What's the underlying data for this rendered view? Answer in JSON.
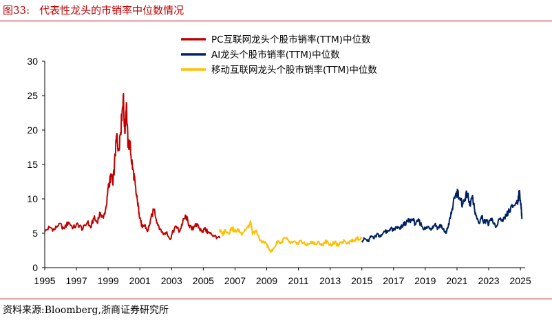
{
  "figure": {
    "label": "图33:",
    "title": "代表性龙头的市销率中位数情况",
    "source": "资料来源:Bloomberg,浙商证券研究所"
  },
  "colors": {
    "accent": "#c00000",
    "pc": "#c00000",
    "ai": "#002060",
    "mobile": "#ffc000",
    "axis": "#000000"
  },
  "chart_data": {
    "type": "line",
    "title": "代表性龙头的市销率中位数情况",
    "xlabel": "",
    "ylabel": "",
    "xlim": [
      1995,
      2025.3
    ],
    "ylim": [
      0,
      30
    ],
    "yticks": [
      0,
      5,
      10,
      15,
      20,
      25,
      30
    ],
    "xticks": [
      1995,
      1997,
      1999,
      2001,
      2003,
      2005,
      2007,
      2009,
      2011,
      2013,
      2015,
      2017,
      2019,
      2021,
      2023,
      2025
    ],
    "legend_position": "top",
    "series": [
      {
        "name": "PC互联网龙头个股市销率(TTM)中位数",
        "color": "#c00000",
        "x": [
          1995.0,
          1995.3,
          1995.6,
          1995.9,
          1996.2,
          1996.5,
          1996.8,
          1997.1,
          1997.4,
          1997.7,
          1997.9,
          1998.1,
          1998.3,
          1998.5,
          1998.7,
          1998.9,
          1999.0,
          1999.1,
          1999.2,
          1999.3,
          1999.45,
          1999.55,
          1999.65,
          1999.75,
          1999.85,
          1999.95,
          2000.05,
          2000.15,
          2000.25,
          2000.35,
          2000.45,
          2000.55,
          2000.65,
          2000.75,
          2000.85,
          2000.95,
          2001.05,
          2001.15,
          2001.3,
          2001.5,
          2001.7,
          2001.9,
          2002.1,
          2002.3,
          2002.5,
          2002.7,
          2002.9,
          2003.1,
          2003.3,
          2003.5,
          2003.7,
          2003.9,
          2004.1,
          2004.3,
          2004.5,
          2004.7,
          2004.9,
          2005.1,
          2005.3,
          2005.5,
          2005.7,
          2005.9,
          2006.05
        ],
        "values": [
          5.2,
          5.9,
          5.5,
          6.4,
          5.7,
          6.6,
          5.8,
          6.3,
          5.6,
          6.6,
          5.8,
          7.2,
          6.6,
          8.0,
          7.2,
          9.1,
          11.5,
          12.6,
          13.3,
          12.0,
          16.5,
          19.5,
          17.0,
          19.3,
          21.5,
          25.0,
          19.5,
          24.0,
          17.5,
          18.5,
          16.0,
          14.5,
          13.0,
          11.0,
          9.5,
          8.0,
          6.8,
          5.8,
          6.2,
          5.3,
          7.2,
          8.5,
          6.5,
          5.6,
          4.8,
          5.2,
          4.1,
          5.3,
          6.0,
          5.2,
          6.6,
          7.5,
          6.2,
          5.5,
          6.4,
          5.8,
          5.3,
          5.6,
          5.1,
          4.9,
          4.6,
          4.4,
          4.3
        ]
      },
      {
        "name": "AI龙头个股市销率(TTM)中位数",
        "color": "#002060",
        "x": [
          2015.0,
          2015.2,
          2015.4,
          2015.6,
          2015.8,
          2016.0,
          2016.2,
          2016.4,
          2016.6,
          2016.8,
          2017.0,
          2017.2,
          2017.4,
          2017.6,
          2017.8,
          2018.0,
          2018.2,
          2018.4,
          2018.6,
          2018.8,
          2019.0,
          2019.2,
          2019.4,
          2019.6,
          2019.8,
          2020.0,
          2020.2,
          2020.3,
          2020.45,
          2020.6,
          2020.75,
          2020.9,
          2021.05,
          2021.2,
          2021.35,
          2021.5,
          2021.65,
          2021.8,
          2021.95,
          2022.1,
          2022.25,
          2022.4,
          2022.55,
          2022.7,
          2022.85,
          2023.0,
          2023.15,
          2023.3,
          2023.5,
          2023.7,
          2023.9,
          2024.1,
          2024.3,
          2024.5,
          2024.7,
          2024.85,
          2024.95,
          2025.05,
          2025.1
        ],
        "values": [
          3.9,
          4.2,
          3.8,
          4.6,
          4.4,
          4.9,
          4.5,
          5.3,
          5.1,
          5.7,
          5.4,
          5.9,
          5.6,
          6.2,
          6.6,
          6.8,
          7.0,
          6.3,
          6.8,
          6.0,
          5.6,
          6.0,
          5.7,
          6.3,
          5.8,
          6.2,
          5.2,
          5.0,
          6.0,
          7.5,
          9.0,
          10.5,
          11.0,
          9.8,
          9.2,
          10.0,
          10.8,
          9.0,
          10.2,
          8.6,
          7.2,
          6.5,
          7.5,
          6.6,
          7.0,
          6.2,
          7.1,
          6.5,
          6.0,
          7.0,
          6.7,
          7.5,
          8.3,
          8.8,
          9.4,
          9.8,
          11.2,
          8.5,
          7.3
        ]
      },
      {
        "name": "移动互联网龙头个股市销率(TTM)中位数",
        "color": "#ffc000",
        "x": [
          2006.0,
          2006.2,
          2006.4,
          2006.6,
          2006.8,
          2007.0,
          2007.2,
          2007.4,
          2007.6,
          2007.8,
          2008.0,
          2008.1,
          2008.3,
          2008.5,
          2008.7,
          2008.9,
          2009.1,
          2009.3,
          2009.5,
          2009.7,
          2009.9,
          2010.1,
          2010.3,
          2010.5,
          2010.7,
          2010.9,
          2011.1,
          2011.3,
          2011.5,
          2011.7,
          2011.9,
          2012.1,
          2012.3,
          2012.5,
          2012.7,
          2012.9,
          2013.1,
          2013.3,
          2013.5,
          2013.7,
          2013.9,
          2014.1,
          2014.3,
          2014.5,
          2014.7,
          2014.9,
          2015.0
        ],
        "values": [
          5.6,
          4.8,
          5.5,
          5.0,
          5.8,
          5.2,
          5.6,
          4.9,
          5.4,
          5.9,
          6.5,
          4.8,
          5.4,
          4.4,
          3.6,
          3.8,
          2.9,
          2.3,
          3.0,
          3.9,
          3.5,
          4.3,
          4.1,
          3.5,
          3.8,
          3.4,
          3.9,
          3.6,
          3.3,
          3.5,
          3.8,
          3.4,
          3.7,
          3.2,
          3.9,
          3.5,
          3.3,
          3.7,
          3.2,
          3.6,
          3.9,
          3.6,
          3.8,
          4.0,
          4.3,
          4.1,
          4.4
        ]
      }
    ]
  }
}
